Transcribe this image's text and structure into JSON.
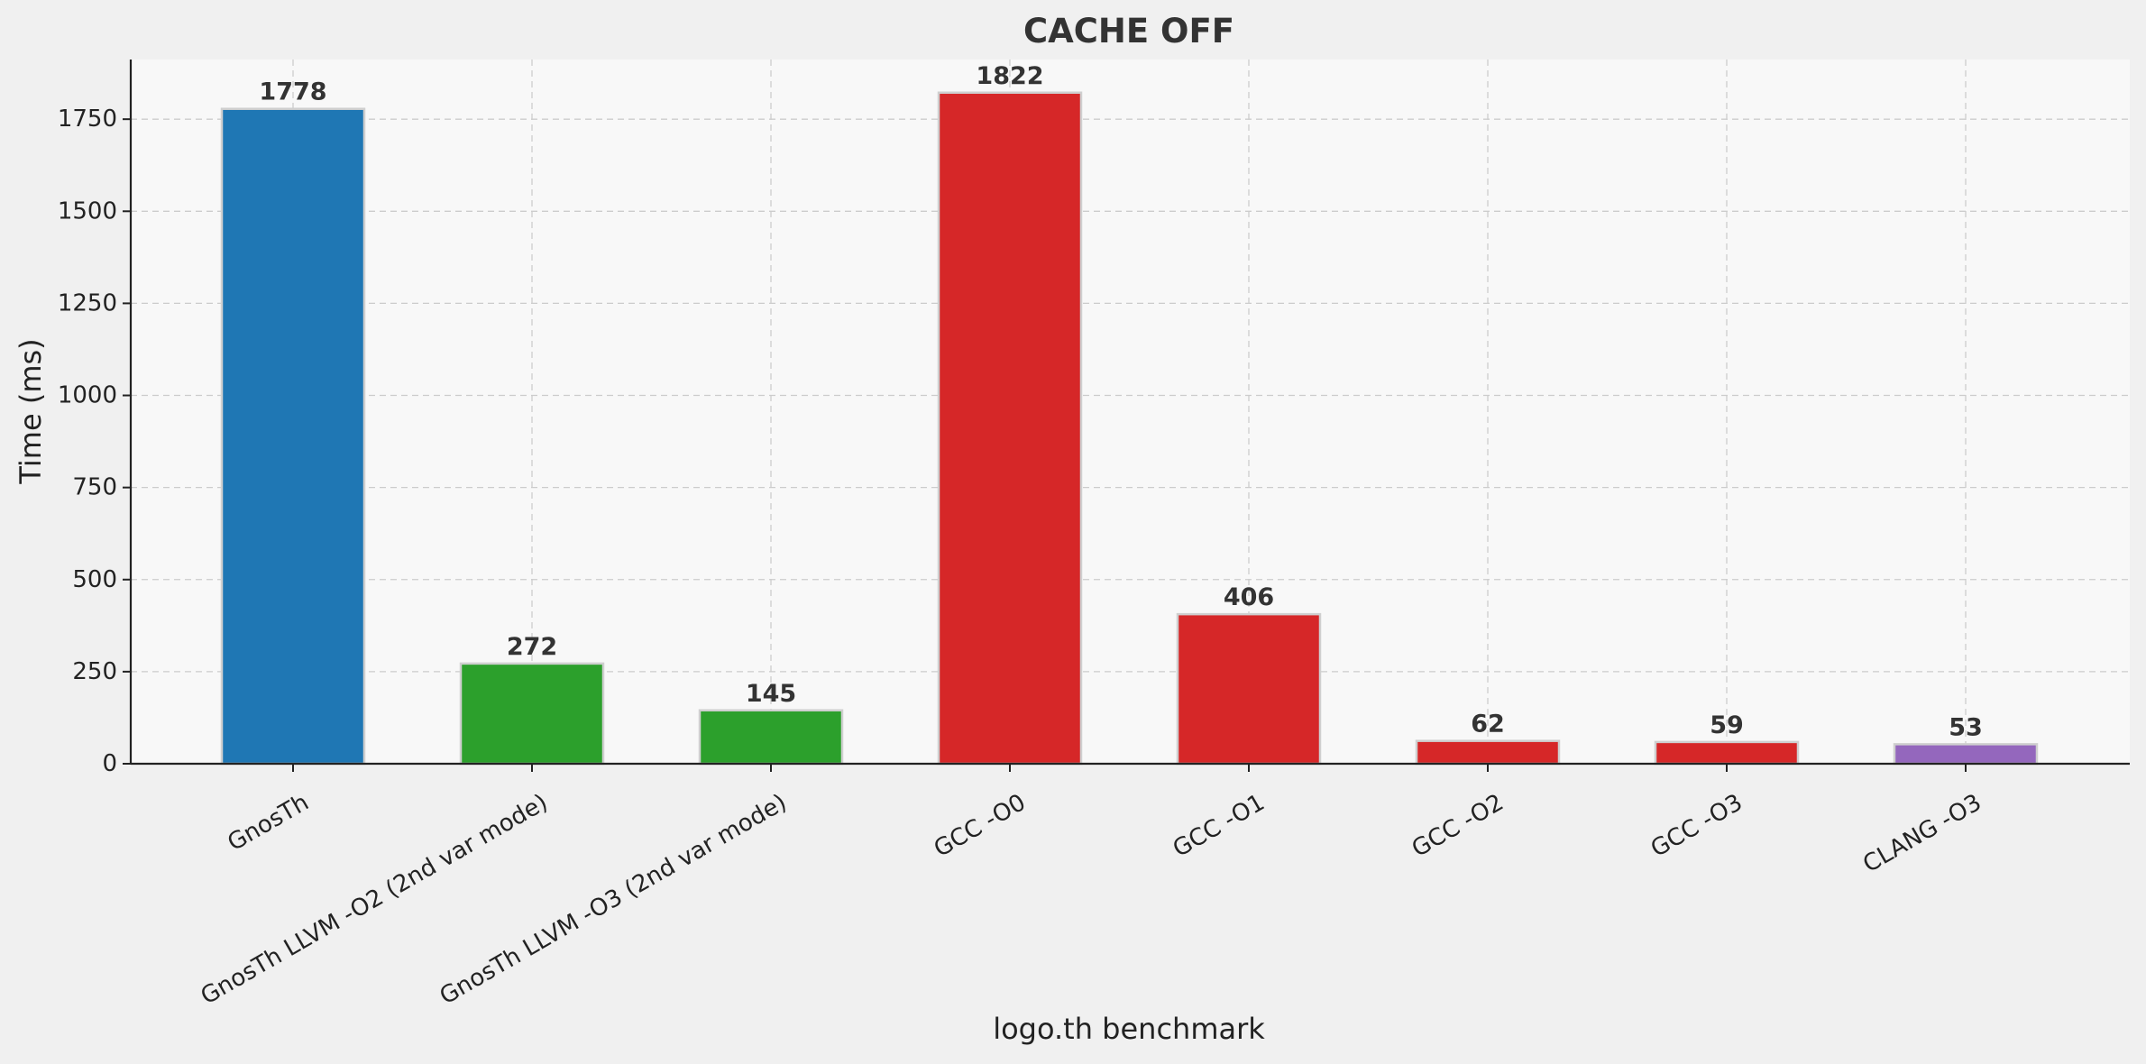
{
  "chart_data": {
    "type": "bar",
    "title": "CACHE OFF",
    "xlabel": "logo.th benchmark",
    "ylabel": "Time (ms)",
    "categories": [
      "GnosTh",
      "GnosTh LLVM -O2 (2nd var mode)",
      "GnosTh LLVM -O3 (2nd var mode)",
      "GCC -O0",
      "GCC -O1",
      "GCC -O2",
      "GCC -O3",
      "CLANG -O3"
    ],
    "values": [
      1778,
      272,
      145,
      1822,
      406,
      62,
      59,
      53
    ],
    "data_labels": [
      "1778",
      "272",
      "145",
      "1822",
      "406",
      "62",
      "59",
      "53"
    ],
    "bar_colors": [
      "#1f77b4",
      "#2ca02c",
      "#2ca02c",
      "#d62728",
      "#d62728",
      "#d62728",
      "#d62728",
      "#9467bd"
    ],
    "ylim": [
      0,
      1912
    ],
    "yticks": [
      0,
      250,
      500,
      750,
      1000,
      1250,
      1500,
      1750
    ],
    "ytick_labels": [
      "0",
      "250",
      "500",
      "750",
      "1000",
      "1250",
      "1500",
      "1750"
    ],
    "grid": true,
    "colors": {
      "figure_background": "#f0f0f0",
      "plot_background": "#f8f8f8",
      "grid": "#cccccc",
      "bar_edge": "#cfcfcf",
      "text": "#333333"
    }
  }
}
